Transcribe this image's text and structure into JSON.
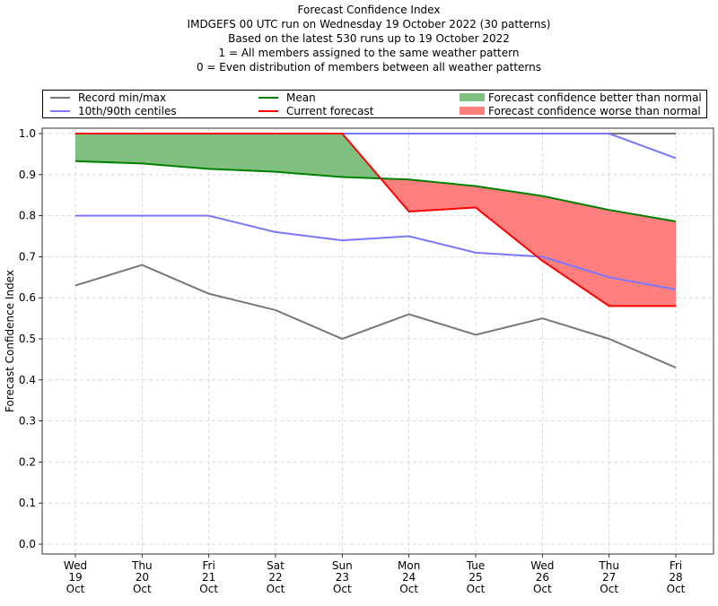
{
  "chart_data": {
    "type": "line",
    "title": "Forecast Confidence Index",
    "subtitles": [
      "IMDGEFS 00 UTC run on Wednesday 19 October 2022 (30 patterns)",
      "Based on the latest 530 runs up to 19 October 2022",
      "1 = All members assigned to the same weather pattern",
      "0 = Even distribution of members between all weather patterns"
    ],
    "xlabel": "",
    "ylabel": "Forecast Confidence Index",
    "ylim": [
      0.0,
      1.0
    ],
    "yticks": [
      "0.0",
      "0.1",
      "0.2",
      "0.3",
      "0.4",
      "0.5",
      "0.6",
      "0.7",
      "0.8",
      "0.9",
      "1.0"
    ],
    "grid": true,
    "legend_position": "top, above plot",
    "categories": [
      [
        "Wed",
        "19",
        "Oct"
      ],
      [
        "Thu",
        "20",
        "Oct"
      ],
      [
        "Fri",
        "21",
        "Oct"
      ],
      [
        "Sat",
        "22",
        "Oct"
      ],
      [
        "Sun",
        "23",
        "Oct"
      ],
      [
        "Mon",
        "24",
        "Oct"
      ],
      [
        "Tue",
        "25",
        "Oct"
      ],
      [
        "Wed",
        "26",
        "Oct"
      ],
      [
        "Thu",
        "27",
        "Oct"
      ],
      [
        "Fri",
        "28",
        "Oct"
      ]
    ],
    "series": [
      {
        "name": "Record max",
        "legend": "Record min/max",
        "color": "#777777",
        "values": [
          1.0,
          1.0,
          1.0,
          1.0,
          1.0,
          1.0,
          1.0,
          1.0,
          1.0,
          1.0
        ]
      },
      {
        "name": "Record min",
        "legend": "Record min/max",
        "color": "#777777",
        "values": [
          0.63,
          0.68,
          0.61,
          0.57,
          0.5,
          0.56,
          0.51,
          0.55,
          0.5,
          0.43
        ]
      },
      {
        "name": "90th centile",
        "legend": "10th/90th centiles",
        "color": "#7777ff",
        "values": [
          1.0,
          1.0,
          1.0,
          1.0,
          1.0,
          1.0,
          1.0,
          1.0,
          1.0,
          0.94
        ]
      },
      {
        "name": "10th centile",
        "legend": "10th/90th centiles",
        "color": "#7777ff",
        "values": [
          0.8,
          0.8,
          0.8,
          0.76,
          0.74,
          0.75,
          0.71,
          0.7,
          0.65,
          0.62
        ]
      },
      {
        "name": "Mean",
        "legend": "Mean",
        "color": "#008000",
        "values": [
          0.933,
          0.927,
          0.914,
          0.907,
          0.894,
          0.888,
          0.872,
          0.848,
          0.814,
          0.786
        ]
      },
      {
        "name": "Current forecast",
        "legend": "Current forecast",
        "color": "#ff0000",
        "values": [
          1.0,
          1.0,
          1.0,
          1.0,
          1.0,
          0.81,
          0.82,
          0.69,
          0.58,
          0.58
        ]
      }
    ],
    "fills": [
      {
        "name": "Forecast confidence better than normal",
        "color": "#7fbf7f",
        "between": [
          "Current forecast",
          "Mean"
        ],
        "where": "current > mean"
      },
      {
        "name": "Forecast confidence worse than normal",
        "color": "#ff7f7f",
        "between": [
          "Current forecast",
          "Mean"
        ],
        "where": "current < mean"
      }
    ]
  },
  "legend": {
    "items": [
      {
        "label": "Record min/max",
        "kind": "line",
        "color": "#777777"
      },
      {
        "label": "10th/90th centiles",
        "kind": "line",
        "color": "#7777ff"
      },
      {
        "label": "Mean",
        "kind": "line",
        "color": "#008000"
      },
      {
        "label": "Current forecast",
        "kind": "line",
        "color": "#ff0000"
      },
      {
        "label": "Forecast confidence better than normal",
        "kind": "patch",
        "color": "#7fbf7f"
      },
      {
        "label": "Forecast confidence worse than normal",
        "kind": "patch",
        "color": "#ff7f7f"
      }
    ]
  }
}
